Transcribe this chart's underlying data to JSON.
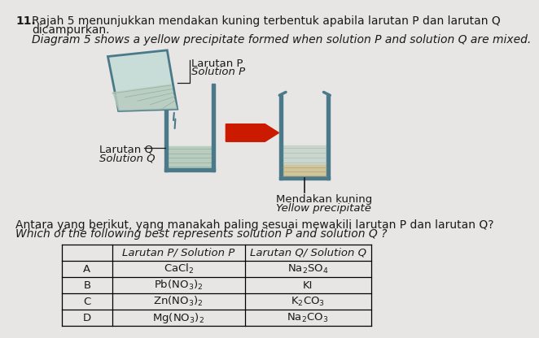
{
  "question_number": "11.",
  "title_malay_1": "Rajah 5 menunjukkan mendakan kuning terbentuk apabila larutan P dan larutan Q",
  "title_malay_2": "dicampurkan.",
  "title_english": "Diagram 5 shows a yellow precipitate formed when solution P and solution Q are mixed.",
  "label_larutan_p": "Larutan P",
  "label_solution_p": "Solution P",
  "label_larutan_q": "Larutan Q",
  "label_solution_q": "Solution Q",
  "label_mendakan": "Mendakan kuning",
  "label_yellow": "Yellow precipitate",
  "question_malay": "Antara yang berikut, yang manakah paling sesuai mewakili larutan P dan larutan Q?",
  "question_english": "Which of the following best represents solution P and solution Q ?",
  "table_header_col2": "Larutan P/ Solution P",
  "table_header_col3": "Larutan Q/ Solution Q",
  "table_rows": [
    [
      "A",
      "CaCl$_2$",
      "Na$_2$SO$_4$"
    ],
    [
      "B",
      "Pb(NO$_3$)$_2$",
      "KI"
    ],
    [
      "C",
      "Zn(NO$_3$)$_2$",
      "K$_2$CO$_3$"
    ],
    [
      "D",
      "Mg(NO$_3$)$_2$",
      "Na$_2$CO$_3$"
    ]
  ],
  "bg_color": "#e8e6e4",
  "beaker_stroke": "#4a7a8a",
  "liquid_color": "#b8ccc0",
  "precipitate_color": "#cfc49a",
  "arrow_color": "#cc1a00",
  "text_color": "#1a1a1a",
  "pour_beaker_fill": "#c8dcd8",
  "pour_beaker_stroke": "#4a7a8a"
}
